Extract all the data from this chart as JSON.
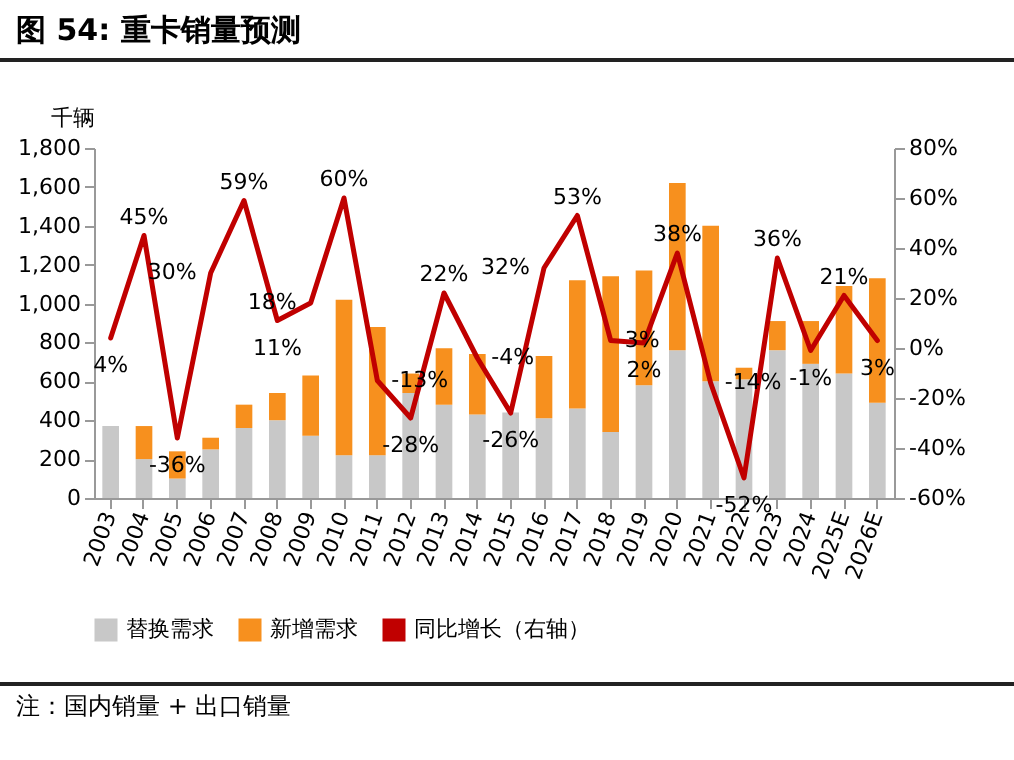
{
  "chart_data": {
    "type": "bar",
    "title": "图 54: 重卡销量预测",
    "ylabel": "千辆",
    "categories": [
      "2003",
      "2004",
      "2005",
      "2006",
      "2007",
      "2008",
      "2009",
      "2010",
      "2011",
      "2012",
      "2013",
      "2014",
      "2015",
      "2016",
      "2017",
      "2018",
      "2019",
      "2020",
      "2021",
      "2022",
      "2023",
      "2024",
      "2025E",
      "2026E"
    ],
    "stacked": true,
    "series": [
      {
        "name": "替换需求",
        "color": "#c8c8c8",
        "values": [
          370,
          200,
          100,
          250,
          360,
          400,
          320,
          220,
          220,
          540,
          480,
          430,
          440,
          410,
          460,
          340,
          580,
          760,
          600,
          610,
          760,
          690,
          640,
          490
        ]
      },
      {
        "name": "新增需求",
        "color": "#f7901e",
        "values": [
          null,
          170,
          140,
          60,
          120,
          140,
          310,
          800,
          660,
          100,
          290,
          310,
          null,
          320,
          660,
          800,
          590,
          860,
          800,
          60,
          150,
          220,
          450,
          640
        ]
      },
      {
        "name": "同比增长（右轴）",
        "type": "line",
        "axis": "y2",
        "color": "#c00000",
        "values": [
          4,
          45,
          -36,
          30,
          59,
          11,
          18,
          60,
          -13,
          -28,
          22,
          -4,
          -26,
          32,
          53,
          3,
          2,
          38,
          -14,
          -52,
          36,
          -1,
          21,
          3
        ],
        "value_labels": [
          "4%",
          "45%",
          "-36%",
          "30%",
          "59%",
          "11%",
          "18%",
          "60%",
          "-13%",
          "-28%",
          "22%",
          "-4%",
          "-26%",
          "32%",
          "53%",
          "3%",
          "2%",
          "38%",
          "-14%",
          "-52%",
          "36%",
          "-1%",
          "21%",
          "3%"
        ]
      }
    ],
    "ylim": [
      0,
      1800
    ],
    "yticks": [
      {
        "value": 0,
        "label": "0"
      },
      {
        "value": 200,
        "label": "200"
      },
      {
        "value": 400,
        "label": "400"
      },
      {
        "value": 600,
        "label": "600"
      },
      {
        "value": 800,
        "label": "800"
      },
      {
        "value": 1000,
        "label": "1,000"
      },
      {
        "value": 1200,
        "label": "1,200"
      },
      {
        "value": 1400,
        "label": "1,400"
      },
      {
        "value": 1600,
        "label": "1,600"
      },
      {
        "value": 1800,
        "label": "1,800"
      }
    ],
    "y2lim": [
      -60,
      80
    ],
    "y2ticks": [
      {
        "value": -60,
        "label": "-60%"
      },
      {
        "value": -40,
        "label": "-40%"
      },
      {
        "value": -20,
        "label": "-20%"
      },
      {
        "value": 0,
        "label": "0%"
      },
      {
        "value": 20,
        "label": "20%"
      },
      {
        "value": 40,
        "label": "40%"
      },
      {
        "value": 60,
        "label": "60%"
      },
      {
        "value": 80,
        "label": "80%"
      }
    ],
    "legend": "bottom",
    "annotations": [
      "注：国内销量 + 出口销量"
    ]
  }
}
